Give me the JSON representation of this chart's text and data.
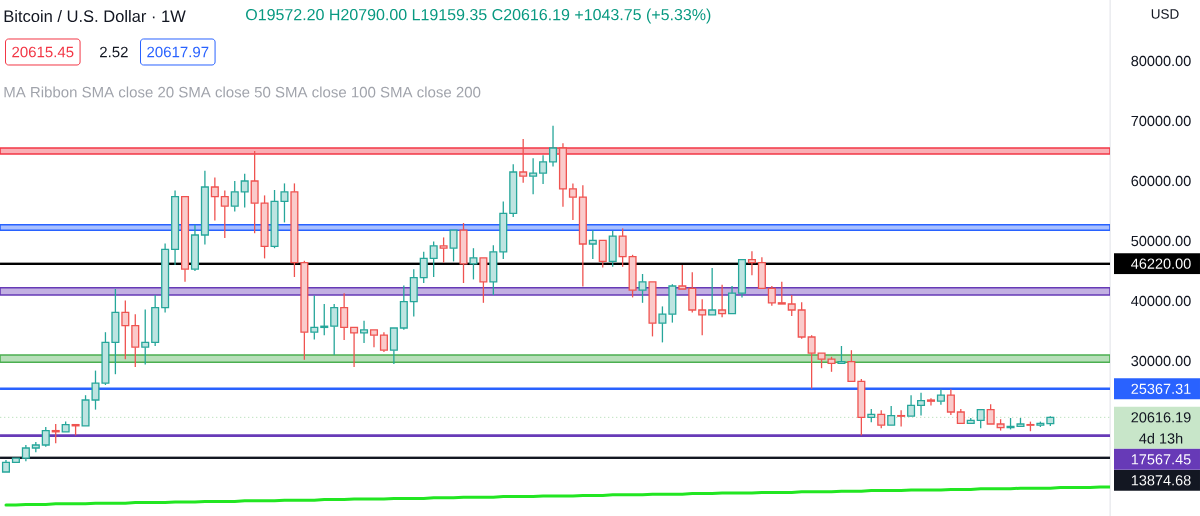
{
  "chart_data": {
    "type": "candlestick",
    "title": "Bitcoin / U.S. Dollar · 1W",
    "ylabel": "USD",
    "annotations": [
      "O19572.20 H20790.00 L19159.35 C20616.19 +1043.75 (+5.33%)",
      "20615.45",
      "2.52",
      "20617.97",
      "MA Ribbon SMA close 20 SMA close 50 SMA close 100 SMA close 200",
      "4d 13h"
    ],
    "categories": [
      null,
      null,
      null,
      null,
      null,
      null,
      null,
      null,
      null,
      null,
      null,
      null,
      null,
      null,
      null,
      null,
      null,
      null,
      null,
      null,
      null,
      null,
      null,
      null,
      null,
      null,
      null,
      null,
      null,
      null,
      null,
      null,
      null,
      null,
      null,
      null,
      null,
      null,
      null,
      null,
      null,
      null,
      null,
      null,
      null,
      null,
      null,
      null,
      null,
      null,
      null,
      null,
      null,
      null,
      null,
      null,
      null,
      null,
      null,
      null,
      null,
      null,
      null,
      null,
      null,
      null,
      null,
      null,
      null,
      null,
      null,
      null,
      null,
      null,
      null,
      null,
      null,
      null,
      null,
      null,
      null,
      null,
      null,
      null,
      null,
      null,
      null,
      null,
      null,
      null,
      null,
      null,
      null,
      null,
      null,
      null,
      null,
      null,
      null,
      null,
      null,
      null,
      null,
      null,
      null,
      null,
      null,
      null,
      null,
      null,
      null,
      null
    ],
    "ohlc": [
      [
        11500,
        13500,
        11500,
        13100
      ],
      [
        13100,
        13800,
        13100,
        13800
      ],
      [
        13800,
        16000,
        13300,
        15500
      ],
      [
        15500,
        16500,
        14800,
        16000
      ],
      [
        16000,
        19000,
        15700,
        18400
      ],
      [
        18400,
        19500,
        16300,
        18200
      ],
      [
        18200,
        19900,
        18200,
        19400
      ],
      [
        19400,
        19400,
        17600,
        19200
      ],
      [
        19200,
        24300,
        19200,
        23500
      ],
      [
        23500,
        28400,
        21900,
        26300
      ],
      [
        26300,
        34800,
        26000,
        33100
      ],
      [
        33100,
        42000,
        27800,
        38100
      ],
      [
        38100,
        40100,
        30300,
        35900
      ],
      [
        35900,
        37800,
        29000,
        32300
      ],
      [
        32300,
        38600,
        29400,
        33100
      ],
      [
        33100,
        41000,
        32500,
        38900
      ],
      [
        38900,
        49600,
        38100,
        48600
      ],
      [
        48600,
        58400,
        46000,
        57400
      ],
      [
        57400,
        57400,
        43200,
        45300
      ],
      [
        45300,
        52700,
        45000,
        51000
      ],
      [
        51000,
        61700,
        49400,
        59000
      ],
      [
        59000,
        60600,
        53400,
        57400
      ],
      [
        57400,
        58400,
        50500,
        55800
      ],
      [
        55800,
        60000,
        54900,
        58200
      ],
      [
        58200,
        61200,
        55600,
        60000
      ],
      [
        60000,
        65000,
        51300,
        56300
      ],
      [
        56300,
        57600,
        47100,
        49100
      ],
      [
        49100,
        58500,
        48800,
        56600
      ],
      [
        56600,
        59600,
        53100,
        58200
      ],
      [
        58200,
        59600,
        44000,
        46400
      ],
      [
        46400,
        46700,
        30200,
        34800
      ],
      [
        34800,
        40900,
        33600,
        35600
      ],
      [
        35600,
        39500,
        34300,
        35800
      ],
      [
        35800,
        39500,
        31000,
        38900
      ],
      [
        38900,
        41300,
        33500,
        35600
      ],
      [
        35600,
        35600,
        29000,
        34700
      ],
      [
        34700,
        36700,
        33000,
        35200
      ],
      [
        35200,
        35200,
        32300,
        34300
      ],
      [
        34300,
        34800,
        31500,
        31800
      ],
      [
        31800,
        35500,
        29500,
        35500
      ],
      [
        35500,
        42600,
        35200,
        39900
      ],
      [
        39900,
        45300,
        37400,
        43900
      ],
      [
        43900,
        48200,
        43000,
        47100
      ],
      [
        47100,
        49900,
        44000,
        49200
      ],
      [
        49200,
        50600,
        46400,
        48800
      ],
      [
        48800,
        51800,
        46600,
        51800
      ],
      [
        51800,
        53000,
        43000,
        46200
      ],
      [
        46200,
        48800,
        43600,
        47200
      ],
      [
        47200,
        47200,
        39700,
        43200
      ],
      [
        43200,
        49300,
        41000,
        48200
      ],
      [
        48200,
        56600,
        47000,
        54600
      ],
      [
        54600,
        62800,
        54000,
        61500
      ],
      [
        61500,
        67000,
        59700,
        60800
      ],
      [
        60800,
        63800,
        57800,
        61300
      ],
      [
        61300,
        64300,
        59500,
        63200
      ],
      [
        63200,
        69200,
        62400,
        65500
      ],
      [
        65500,
        66300,
        55700,
        58700
      ],
      [
        58700,
        59600,
        53500,
        57300
      ],
      [
        57300,
        59300,
        42400,
        49500
      ],
      [
        49500,
        51800,
        47000,
        50100
      ],
      [
        50100,
        50100,
        45600,
        46600
      ],
      [
        46600,
        51700,
        45700,
        50800
      ],
      [
        50800,
        52100,
        45700,
        47400
      ],
      [
        47400,
        47700,
        40600,
        41800
      ],
      [
        41800,
        44500,
        39700,
        43200
      ],
      [
        43200,
        43200,
        34100,
        36300
      ],
      [
        36300,
        39100,
        33100,
        37800
      ],
      [
        37800,
        42800,
        36400,
        42500
      ],
      [
        42500,
        46000,
        42000,
        42000
      ],
      [
        42100,
        44800,
        38100,
        38500
      ],
      [
        38500,
        40300,
        34300,
        37700
      ],
      [
        37700,
        45500,
        37700,
        38500
      ],
      [
        38500,
        42700,
        37300,
        37900
      ],
      [
        37900,
        42500,
        37900,
        41300
      ],
      [
        41300,
        46900,
        40600,
        46900
      ],
      [
        46900,
        48300,
        44300,
        46400
      ],
      [
        46400,
        47300,
        42100,
        42100
      ],
      [
        42100,
        42500,
        39200,
        39700
      ],
      [
        39700,
        43200,
        39500,
        39500
      ],
      [
        39500,
        41000,
        37500,
        38500
      ],
      [
        38500,
        39800,
        33700,
        34000
      ],
      [
        34000,
        34300,
        25400,
        31300
      ],
      [
        31300,
        31300,
        28800,
        30300
      ],
      [
        30300,
        30700,
        28200,
        29600
      ],
      [
        29600,
        32500,
        29600,
        29900
      ],
      [
        29900,
        31800,
        26600,
        26600
      ],
      [
        26600,
        27000,
        17600,
        20600
      ],
      [
        20600,
        22000,
        19800,
        21100
      ],
      [
        21100,
        21800,
        18800,
        19300
      ],
      [
        19300,
        22500,
        19300,
        20900
      ],
      [
        20900,
        21800,
        19100,
        20800
      ],
      [
        20800,
        24300,
        20800,
        22600
      ],
      [
        22600,
        24700,
        20900,
        23400
      ],
      [
        23500,
        23800,
        22600,
        23300
      ],
      [
        23300,
        25300,
        22700,
        24300
      ],
      [
        24300,
        25300,
        21000,
        21500
      ],
      [
        21500,
        22000,
        19600,
        19600
      ],
      [
        19600,
        20500,
        19600,
        20100
      ],
      [
        20100,
        21900,
        18800,
        21900
      ],
      [
        21900,
        22800,
        19500,
        19500
      ],
      [
        19500,
        20300,
        18400,
        18900
      ],
      [
        18900,
        20500,
        18600,
        19100
      ],
      [
        19100,
        20500,
        19100,
        19500
      ],
      [
        19400,
        19900,
        18300,
        19300
      ],
      [
        19300,
        19900,
        19000,
        19600
      ],
      [
        19572.2,
        20790,
        19159.35,
        20616.19
      ],
      null,
      null,
      null,
      null,
      null,
      null
    ],
    "colors": [
      "#26a69a",
      "#26a69a",
      "#26a69a",
      "#26a69a",
      "#26a69a",
      "#ef5350",
      "#26a69a",
      "#ef5350",
      "#26a69a",
      "#26a69a",
      "#26a69a",
      "#26a69a",
      "#ef5350",
      "#ef5350",
      "#26a69a",
      "#26a69a",
      "#26a69a",
      "#26a69a",
      "#ef5350",
      "#26a69a",
      "#26a69a",
      "#ef5350",
      "#ef5350",
      "#26a69a",
      "#26a69a",
      "#ef5350",
      "#ef5350",
      "#26a69a",
      "#26a69a",
      "#ef5350",
      "#ef5350",
      "#26a69a",
      "#26a69a",
      "#26a69a",
      "#ef5350",
      "#ef5350",
      "#26a69a",
      "#ef5350",
      "#ef5350",
      "#26a69a",
      "#26a69a",
      "#26a69a",
      "#26a69a",
      "#26a69a",
      "#ef5350",
      "#26a69a",
      "#ef5350",
      "#26a69a",
      "#ef5350",
      "#26a69a",
      "#26a69a",
      "#26a69a",
      "#ef5350",
      "#26a69a",
      "#26a69a",
      "#26a69a",
      "#ef5350",
      "#ef5350",
      "#ef5350",
      "#26a69a",
      "#ef5350",
      "#26a69a",
      "#ef5350",
      "#ef5350",
      "#26a69a",
      "#ef5350",
      "#26a69a",
      "#26a69a",
      "#ef5350",
      "#ef5350",
      "#ef5350",
      "#26a69a",
      "#ef5350",
      "#26a69a",
      "#26a69a",
      "#ef5350",
      "#ef5350",
      "#ef5350",
      "#ef5350",
      "#ef5350",
      "#ef5350",
      "#ef5350",
      "#ef5350",
      "#ef5350",
      "#26a69a",
      "#ef5350",
      "#ef5350",
      "#26a69a",
      "#ef5350",
      "#26a69a",
      "#ef5350",
      "#26a69a",
      "#26a69a",
      "#ef5350",
      "#26a69a",
      "#ef5350",
      "#ef5350",
      "#26a69a",
      "#26a69a",
      "#ef5350",
      "#ef5350",
      "#26a69a",
      "#26a69a",
      "#ef5350",
      "#26a69a",
      "#26a69a",
      null,
      null,
      null,
      null,
      null,
      null
    ],
    "series": [
      {
        "type": "line",
        "color": "#22e622",
        "values": [
          6000,
          6000,
          6100,
          6100,
          6100,
          6200,
          6200,
          6200,
          6200,
          6300,
          6300,
          6300,
          6300,
          6400,
          6400,
          6400,
          6400,
          6500,
          6500,
          6500,
          6600,
          6600,
          6600,
          6600,
          6700,
          6700,
          6700,
          6700,
          6800,
          6800,
          6800,
          6800,
          6900,
          6900,
          6900,
          7000,
          7000,
          7000,
          7000,
          7100,
          7100,
          7100,
          7100,
          7200,
          7200,
          7200,
          7300,
          7300,
          7300,
          7300,
          7400,
          7400,
          7400,
          7400,
          7500,
          7500,
          7500,
          7500,
          7600,
          7600,
          7600,
          7700,
          7700,
          7700,
          7700,
          7800,
          7800,
          7800,
          7800,
          7900,
          7900,
          7900,
          8000,
          8000,
          8000,
          8000,
          8100,
          8100,
          8100,
          8100,
          8200,
          8200,
          8200,
          8200,
          8300,
          8300,
          8300,
          8400,
          8400,
          8400,
          8400,
          8500,
          8500,
          8500,
          8500,
          8600,
          8600,
          8600,
          8700,
          8700,
          8700,
          8700,
          8800,
          8800,
          8800,
          8800,
          8900,
          8900,
          8900,
          8900,
          9000,
          9000
        ]
      }
    ],
    "ylim": [
      4170,
      90170
    ],
    "yticks": [
      {
        "value": 30000,
        "label": "30000.00"
      },
      {
        "value": 40000,
        "label": "40000.00"
      },
      {
        "value": 50000,
        "label": "50000.00"
      },
      {
        "value": 60000,
        "label": "60000.00"
      },
      {
        "value": 70000,
        "label": "70000.00"
      },
      {
        "value": 80000,
        "label": "80000.00"
      }
    ],
    "tick_labels": "y",
    "bands": [
      {
        "axis": "y",
        "from": 64500,
        "to": 65500,
        "color": "#faafb5"
      },
      {
        "axis": "y",
        "from": 51800,
        "to": 52700,
        "color": "#a9c0ff"
      },
      {
        "axis": "y",
        "from": 41000,
        "to": 42200,
        "color": "#c2b0e2"
      },
      {
        "axis": "y",
        "from": 29800,
        "to": 31000,
        "color": "#b7dfb9"
      }
    ],
    "ref_lines": [
      {
        "axis": "y",
        "value": 46220,
        "label": "46220.00",
        "color": "#000000"
      },
      {
        "axis": "y",
        "value": 25367.31,
        "label": "25367.31",
        "color": "#2962ff"
      },
      {
        "axis": "y",
        "value": 20616.19,
        "label": "20616.19",
        "color": "#c8e6c9",
        "line_style": "dotted"
      },
      {
        "axis": "y",
        "value": 17567.45,
        "label": "17567.45",
        "color": "#673ab7"
      },
      {
        "axis": "y",
        "value": 13874.68,
        "label": "13874.68",
        "color": "#131722"
      }
    ]
  }
}
